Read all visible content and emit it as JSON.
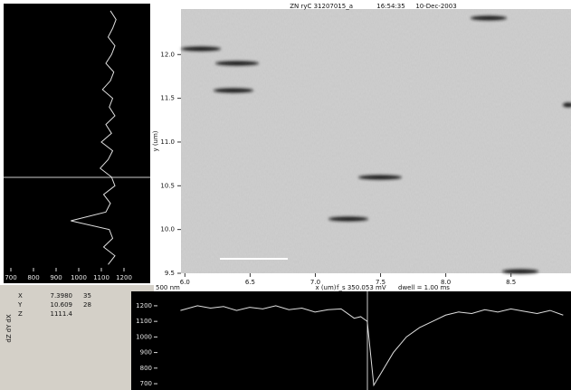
{
  "chart_data": [
    {
      "type": "image",
      "title": "ZN ryC 31207015_a",
      "time": "16:54:35",
      "date": "10-Dec-2003",
      "xlabel": "x (um)",
      "ylabel": "y (um)",
      "scale_bar": "500 nm",
      "annotations": [
        "f_s  350.053 mV",
        "dwell =  1.00 ms"
      ],
      "xlim": [
        5.97,
        8.96
      ],
      "ylim": [
        9.5,
        12.52
      ],
      "xticks": [
        {
          "value": 6,
          "label": "6.0"
        },
        6.5,
        {
          "value": 7,
          "label": "7.0"
        },
        7.5,
        {
          "value": 8,
          "label": "8.0"
        },
        8.5
      ],
      "yticks": [
        9.5,
        {
          "value": 10,
          "label": "10.0"
        },
        10.5,
        {
          "value": 11,
          "label": "11.0"
        },
        11.5,
        {
          "value": 12,
          "label": "12.0"
        }
      ]
    },
    {
      "type": "line",
      "orientation": "vertical",
      "color": "#e0e0e0",
      "x": [
        12.5,
        12.4,
        12.3,
        12.2,
        12.1,
        12.0,
        11.9,
        11.8,
        11.7,
        11.6,
        11.5,
        11.4,
        11.3,
        11.2,
        11.1,
        11.0,
        10.9,
        10.8,
        10.7,
        10.6,
        10.5,
        10.4,
        10.3,
        10.2,
        10.1,
        10.0,
        9.9,
        9.8,
        9.7,
        9.6
      ],
      "values": [
        1140,
        1165,
        1150,
        1130,
        1160,
        1145,
        1120,
        1155,
        1140,
        1105,
        1150,
        1135,
        1160,
        1120,
        1145,
        1100,
        1150,
        1130,
        1095,
        1145,
        1160,
        1110,
        1140,
        1120,
        965,
        1135,
        1150,
        1110,
        1160,
        1130
      ],
      "xlim": [
        9.5,
        12.52
      ],
      "ylim": [
        684,
        1292
      ],
      "yticks": [
        700,
        800,
        900,
        1000,
        1100,
        1200
      ]
    },
    {
      "type": "line",
      "orientation": "horizontal",
      "color": "#e0e0e0",
      "x": [
        5.97,
        6.1,
        6.2,
        6.3,
        6.4,
        6.5,
        6.6,
        6.7,
        6.8,
        6.9,
        7.0,
        7.1,
        7.2,
        7.3,
        7.35,
        7.4,
        7.45,
        7.5,
        7.6,
        7.7,
        7.8,
        7.9,
        8.0,
        8.1,
        8.2,
        8.3,
        8.4,
        8.5,
        8.6,
        8.7,
        8.8,
        8.9
      ],
      "values": [
        1170,
        1200,
        1185,
        1195,
        1170,
        1190,
        1180,
        1200,
        1175,
        1185,
        1160,
        1175,
        1180,
        1120,
        1130,
        1100,
        690,
        760,
        900,
        1000,
        1060,
        1100,
        1140,
        1160,
        1150,
        1175,
        1160,
        1180,
        1165,
        1150,
        1170,
        1140
      ],
      "xlim": [
        5.78,
        8.96
      ],
      "ylim": [
        677,
        1275
      ],
      "yticks": [
        700,
        800,
        900,
        1000,
        1100,
        1200
      ]
    }
  ],
  "readout": {
    "rows": [
      {
        "label": "X",
        "value": "7.3980",
        "pixel": "35"
      },
      {
        "label": "Y",
        "value": "10.609",
        "pixel": "28"
      },
      {
        "label": "Z",
        "value": "1111.4"
      }
    ],
    "side_labels": [
      "dX",
      "dY",
      "dZ"
    ]
  }
}
